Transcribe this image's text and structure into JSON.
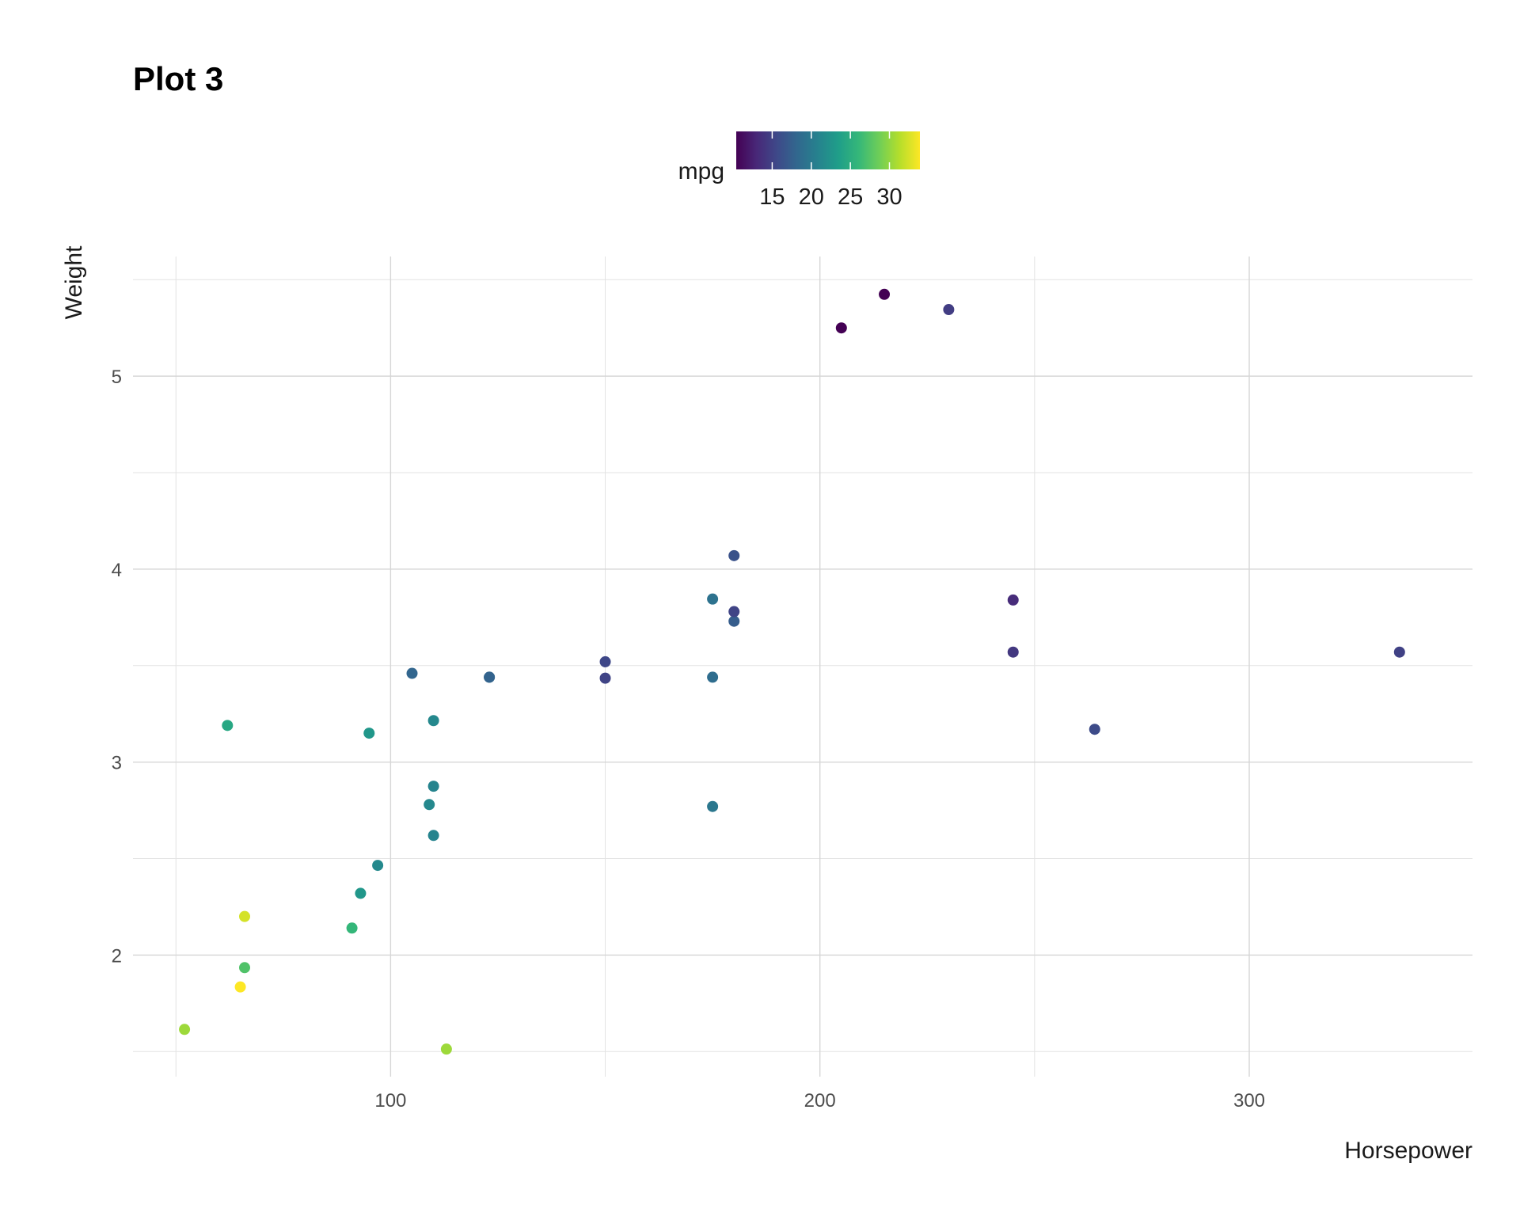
{
  "chart_data": {
    "type": "scatter",
    "title": "Plot 3",
    "xlabel": "Horsepower",
    "ylabel": "Weight",
    "xlim": [
      40,
      352
    ],
    "ylim": [
      1.37,
      5.62
    ],
    "x_ticks": [
      100,
      200,
      300
    ],
    "x_minor_ticks": [
      50,
      150,
      250
    ],
    "y_ticks": [
      2,
      3,
      4,
      5
    ],
    "y_minor_ticks": [
      1.5,
      2.5,
      3.5,
      4.5,
      5.5
    ],
    "grid": true,
    "legend": {
      "title": "mpg",
      "position": "top",
      "type": "colorbar",
      "range": [
        10.4,
        33.9
      ],
      "ticks": [
        15,
        20,
        25,
        30
      ],
      "colors": [
        "#440154",
        "#482878",
        "#3e4989",
        "#31688e",
        "#26828e",
        "#1f9e89",
        "#35b779",
        "#6ece58",
        "#b5de2b",
        "#fde725"
      ]
    },
    "points": [
      {
        "x": 110,
        "y": 2.62,
        "mpg": 21.0
      },
      {
        "x": 110,
        "y": 2.875,
        "mpg": 21.0
      },
      {
        "x": 93,
        "y": 2.32,
        "mpg": 22.8
      },
      {
        "x": 110,
        "y": 3.215,
        "mpg": 21.4
      },
      {
        "x": 175,
        "y": 3.44,
        "mpg": 18.7
      },
      {
        "x": 105,
        "y": 3.46,
        "mpg": 18.1
      },
      {
        "x": 245,
        "y": 3.57,
        "mpg": 14.3
      },
      {
        "x": 62,
        "y": 3.19,
        "mpg": 24.4
      },
      {
        "x": 95,
        "y": 3.15,
        "mpg": 22.8
      },
      {
        "x": 123,
        "y": 3.44,
        "mpg": 19.2
      },
      {
        "x": 123,
        "y": 3.44,
        "mpg": 17.8
      },
      {
        "x": 180,
        "y": 4.07,
        "mpg": 16.4
      },
      {
        "x": 180,
        "y": 3.73,
        "mpg": 17.3
      },
      {
        "x": 180,
        "y": 3.78,
        "mpg": 15.2
      },
      {
        "x": 205,
        "y": 5.25,
        "mpg": 10.4
      },
      {
        "x": 215,
        "y": 5.424,
        "mpg": 10.4
      },
      {
        "x": 230,
        "y": 5.345,
        "mpg": 14.7
      },
      {
        "x": 66,
        "y": 2.2,
        "mpg": 32.4
      },
      {
        "x": 52,
        "y": 1.615,
        "mpg": 30.4
      },
      {
        "x": 65,
        "y": 1.835,
        "mpg": 33.9
      },
      {
        "x": 97,
        "y": 2.465,
        "mpg": 21.5
      },
      {
        "x": 150,
        "y": 3.52,
        "mpg": 15.5
      },
      {
        "x": 150,
        "y": 3.435,
        "mpg": 15.2
      },
      {
        "x": 245,
        "y": 3.84,
        "mpg": 13.3
      },
      {
        "x": 175,
        "y": 3.845,
        "mpg": 19.2
      },
      {
        "x": 66,
        "y": 1.935,
        "mpg": 27.3
      },
      {
        "x": 91,
        "y": 2.14,
        "mpg": 26.0
      },
      {
        "x": 113,
        "y": 1.513,
        "mpg": 30.4
      },
      {
        "x": 264,
        "y": 3.17,
        "mpg": 15.8
      },
      {
        "x": 175,
        "y": 2.77,
        "mpg": 19.7
      },
      {
        "x": 335,
        "y": 3.57,
        "mpg": 15.0
      },
      {
        "x": 109,
        "y": 2.78,
        "mpg": 21.4
      }
    ]
  }
}
